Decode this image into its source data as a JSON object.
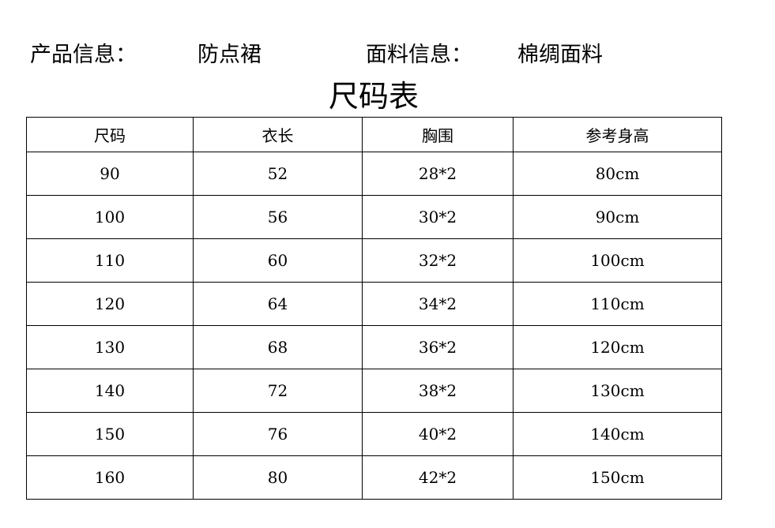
{
  "header": {
    "product_label": "产品信息：",
    "product_value": "防点裙",
    "fabric_label": "面料信息：",
    "fabric_value": "棉绸面料"
  },
  "title": "尺码表",
  "table": {
    "columns": [
      "尺码",
      "衣长",
      "胸围",
      "参考身高"
    ],
    "rows": [
      [
        "90",
        "52",
        "28*2",
        "80cm"
      ],
      [
        "100",
        "56",
        "30*2",
        "90cm"
      ],
      [
        "110",
        "60",
        "32*2",
        "100cm"
      ],
      [
        "120",
        "64",
        "34*2",
        "110cm"
      ],
      [
        "130",
        "68",
        "36*2",
        "120cm"
      ],
      [
        "140",
        "72",
        "38*2",
        "130cm"
      ],
      [
        "150",
        "76",
        "40*2",
        "140cm"
      ],
      [
        "160",
        "80",
        "42*2",
        "150cm"
      ]
    ]
  }
}
